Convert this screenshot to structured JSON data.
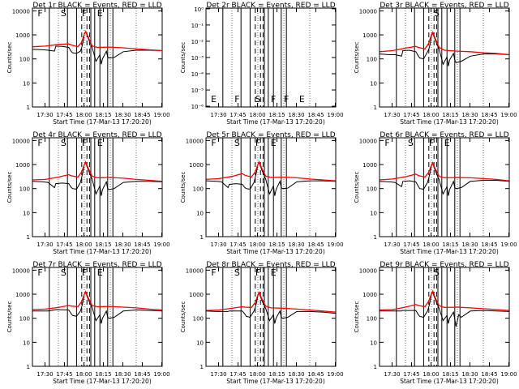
{
  "colors": {
    "events": "#000000",
    "lld": "#ff0000",
    "axes": "#000000",
    "background": "#ffffff"
  },
  "x_tick_labels": [
    "17:30",
    "17:45",
    "18:00",
    "18:15",
    "18:30",
    "18:45",
    "19:00"
  ],
  "xlabel": "Start Time (17-Mar-13 17:20:20)",
  "ylabel": "Counts/sec",
  "chart_data": [
    {
      "type": "line",
      "panel": "1r",
      "title": "Det 1r  BLACK = Events, RED = LLD",
      "x_unit": "minutes after 17:20:20",
      "xlim": [
        0,
        100
      ],
      "yscale": "log",
      "ylim": [
        1,
        13000
      ],
      "y_tick_labels": [
        "1",
        "10",
        "100",
        "1000",
        "10000"
      ],
      "y_tick_values": [
        1,
        10,
        100,
        1000,
        10000
      ],
      "attenuator_letters": [
        "F",
        "S",
        "F",
        "E"
      ],
      "series": [
        {
          "name": "Events",
          "color": "#000000",
          "x": [
            0,
            8,
            12,
            17,
            18,
            23,
            28,
            30,
            31,
            34,
            37,
            38,
            39,
            40,
            41,
            43,
            46,
            49,
            52,
            53,
            54,
            57,
            58,
            59,
            63,
            70,
            80,
            90,
            100
          ],
          "y": [
            250,
            240,
            230,
            210,
            340,
            330,
            300,
            200,
            180,
            170,
            210,
            300,
            500,
            1100,
            1400,
            700,
            300,
            80,
            150,
            60,
            100,
            210,
            120,
            110,
            115,
            200,
            230,
            230,
            220
          ]
        },
        {
          "name": "LLD",
          "color": "#ff0000",
          "x": [
            0,
            10,
            20,
            28,
            30,
            35,
            38,
            40,
            41,
            43,
            46,
            50,
            60,
            70,
            80,
            90,
            100
          ],
          "y": [
            320,
            340,
            400,
            420,
            380,
            320,
            500,
            1100,
            1400,
            800,
            350,
            300,
            310,
            290,
            260,
            240,
            220
          ]
        }
      ]
    },
    {
      "type": "line",
      "panel": "2r",
      "title": "Det 2r  BLACK = Events, RED = LLD",
      "x_unit": "minutes after 17:20:20",
      "xlim": [
        0,
        100
      ],
      "yscale": "log",
      "ylim": [
        9e-07,
        1.1
      ],
      "y_tick_labels": [
        "10⁰",
        "10⁻¹",
        "10⁻²",
        "10⁻³",
        "10⁻⁴",
        "10⁻⁵",
        "10⁻⁶"
      ],
      "y_tick_values": [
        1,
        0.1,
        0.01,
        0.001,
        0.0001,
        1e-05,
        1e-06
      ],
      "attenuator_letters": [
        "E",
        "F",
        "S",
        "F",
        "F",
        "E"
      ],
      "series": []
    },
    {
      "type": "line",
      "panel": "3r",
      "title": "Det 3r  BLACK = Events, RED = LLD",
      "x_unit": "minutes after 17:20:20",
      "xlim": [
        0,
        100
      ],
      "yscale": "log",
      "ylim": [
        1,
        13000
      ],
      "y_tick_labels": [
        "1",
        "10",
        "100",
        "1000",
        "10000"
      ],
      "y_tick_values": [
        1,
        10,
        100,
        1000,
        10000
      ],
      "attenuator_letters": [
        "S"
      ],
      "series": [
        {
          "name": "Events",
          "color": "#000000",
          "x": [
            0,
            8,
            12,
            17,
            18,
            23,
            28,
            30,
            31,
            34,
            37,
            38,
            39,
            40,
            41,
            43,
            46,
            49,
            52,
            53,
            54,
            57,
            58,
            59,
            63,
            70,
            80,
            90,
            100
          ],
          "y": [
            160,
            150,
            150,
            130,
            220,
            230,
            200,
            130,
            110,
            100,
            200,
            250,
            400,
            900,
            1200,
            600,
            250,
            60,
            120,
            50,
            90,
            170,
            90,
            70,
            80,
            130,
            160,
            160,
            150
          ]
        },
        {
          "name": "LLD",
          "color": "#ff0000",
          "x": [
            0,
            10,
            20,
            28,
            30,
            35,
            38,
            40,
            41,
            43,
            46,
            50,
            60,
            70,
            80,
            90,
            100
          ],
          "y": [
            200,
            220,
            280,
            330,
            300,
            260,
            450,
            1000,
            1300,
            700,
            300,
            230,
            210,
            200,
            180,
            170,
            150
          ]
        }
      ]
    },
    {
      "type": "line",
      "panel": "4r",
      "title": "Det 4r  BLACK = Events, RED = LLD",
      "x_unit": "minutes after 17:20:20",
      "xlim": [
        0,
        100
      ],
      "yscale": "log",
      "ylim": [
        1,
        13000
      ],
      "y_tick_labels": [
        "1",
        "10",
        "100",
        "1000",
        "10000"
      ],
      "y_tick_values": [
        1,
        10,
        100,
        1000,
        10000
      ],
      "attenuator_letters": [
        "F",
        "S",
        "F",
        "E"
      ],
      "series": [
        {
          "name": "Events",
          "color": "#000000",
          "x": [
            0,
            8,
            12,
            17,
            18,
            23,
            28,
            30,
            31,
            34,
            37,
            38,
            39,
            40,
            41,
            43,
            46,
            49,
            52,
            53,
            54,
            57,
            58,
            59,
            63,
            70,
            80,
            90,
            100
          ],
          "y": [
            200,
            190,
            180,
            110,
            160,
            170,
            160,
            110,
            100,
            95,
            180,
            300,
            500,
            1000,
            1200,
            600,
            250,
            60,
            130,
            50,
            90,
            190,
            100,
            90,
            100,
            180,
            200,
            200,
            190
          ]
        },
        {
          "name": "LLD",
          "color": "#ff0000",
          "x": [
            0,
            10,
            20,
            28,
            30,
            35,
            38,
            40,
            41,
            43,
            46,
            50,
            60,
            70,
            80,
            90,
            100
          ],
          "y": [
            230,
            240,
            300,
            380,
            340,
            300,
            500,
            1000,
            1300,
            700,
            330,
            280,
            290,
            270,
            240,
            220,
            200
          ]
        }
      ]
    },
    {
      "type": "line",
      "panel": "5r",
      "title": "Det 5r  BLACK = Events, RED = LLD",
      "x_unit": "minutes after 17:20:20",
      "xlim": [
        0,
        100
      ],
      "yscale": "log",
      "ylim": [
        1,
        13000
      ],
      "y_tick_labels": [
        "1",
        "10",
        "100",
        "1000",
        "10000"
      ],
      "y_tick_values": [
        1,
        10,
        100,
        1000,
        10000
      ],
      "attenuator_letters": [
        "F",
        "S",
        "F",
        "E"
      ],
      "series": [
        {
          "name": "Events",
          "color": "#000000",
          "x": [
            0,
            8,
            12,
            17,
            18,
            23,
            28,
            30,
            31,
            34,
            37,
            38,
            39,
            40,
            41,
            43,
            46,
            49,
            52,
            53,
            54,
            57,
            58,
            59,
            63,
            70,
            80,
            90,
            100
          ],
          "y": [
            210,
            200,
            190,
            110,
            150,
            160,
            150,
            110,
            100,
            95,
            180,
            300,
            500,
            1000,
            1200,
            600,
            250,
            60,
            130,
            50,
            90,
            200,
            110,
            100,
            105,
            190,
            210,
            210,
            200
          ]
        },
        {
          "name": "LLD",
          "color": "#ff0000",
          "x": [
            0,
            10,
            20,
            28,
            30,
            35,
            38,
            40,
            41,
            43,
            46,
            50,
            60,
            70,
            80,
            90,
            100
          ],
          "y": [
            240,
            260,
            320,
            420,
            360,
            300,
            500,
            1000,
            1300,
            700,
            330,
            290,
            300,
            280,
            250,
            230,
            210
          ]
        }
      ]
    },
    {
      "type": "line",
      "panel": "6r",
      "title": "Det 6r  BLACK = Events, RED = LLD",
      "x_unit": "minutes after 17:20:20",
      "xlim": [
        0,
        100
      ],
      "yscale": "log",
      "ylim": [
        1,
        13000
      ],
      "y_tick_labels": [
        "1",
        "10",
        "100",
        "1000",
        "10000"
      ],
      "y_tick_values": [
        1,
        10,
        100,
        1000,
        10000
      ],
      "attenuator_letters": [
        "F",
        "S",
        "F",
        "E"
      ],
      "series": [
        {
          "name": "Events",
          "color": "#000000",
          "x": [
            0,
            8,
            12,
            17,
            18,
            23,
            28,
            30,
            31,
            34,
            37,
            38,
            39,
            40,
            41,
            43,
            46,
            49,
            52,
            53,
            54,
            57,
            58,
            59,
            63,
            70,
            80,
            90,
            100
          ],
          "y": [
            200,
            190,
            180,
            120,
            200,
            210,
            190,
            120,
            100,
            95,
            180,
            280,
            450,
            900,
            1100,
            550,
            230,
            60,
            120,
            50,
            90,
            200,
            110,
            100,
            110,
            200,
            220,
            220,
            200
          ]
        },
        {
          "name": "LLD",
          "color": "#ff0000",
          "x": [
            0,
            10,
            20,
            28,
            30,
            35,
            38,
            40,
            41,
            43,
            46,
            50,
            60,
            70,
            80,
            90,
            100
          ],
          "y": [
            230,
            250,
            310,
            400,
            350,
            300,
            480,
            950,
            1200,
            650,
            320,
            280,
            290,
            280,
            260,
            240,
            210
          ]
        }
      ]
    },
    {
      "type": "line",
      "panel": "7r",
      "title": "Det 7r  BLACK = Events, RED = LLD",
      "x_unit": "minutes after 17:20:20",
      "xlim": [
        0,
        100
      ],
      "yscale": "log",
      "ylim": [
        1,
        13000
      ],
      "y_tick_labels": [
        "1",
        "10",
        "100",
        "1000",
        "10000"
      ],
      "y_tick_values": [
        1,
        10,
        100,
        1000,
        10000
      ],
      "attenuator_letters": [
        "F",
        "S",
        "F",
        "E"
      ],
      "series": [
        {
          "name": "Events",
          "color": "#000000",
          "x": [
            0,
            8,
            12,
            17,
            18,
            23,
            28,
            30,
            31,
            34,
            37,
            38,
            39,
            40,
            41,
            43,
            46,
            49,
            52,
            53,
            54,
            57,
            58,
            59,
            63,
            70,
            80,
            90,
            100
          ],
          "y": [
            200,
            200,
            200,
            220,
            230,
            225,
            220,
            150,
            130,
            120,
            200,
            300,
            500,
            1000,
            1200,
            600,
            280,
            80,
            140,
            60,
            100,
            200,
            110,
            100,
            110,
            200,
            220,
            210,
            200
          ]
        },
        {
          "name": "LLD",
          "color": "#ff0000",
          "x": [
            0,
            10,
            20,
            28,
            30,
            35,
            38,
            40,
            41,
            43,
            46,
            50,
            60,
            70,
            80,
            90,
            100
          ],
          "y": [
            230,
            240,
            280,
            340,
            320,
            300,
            500,
            1000,
            1300,
            700,
            340,
            300,
            310,
            290,
            270,
            240,
            220
          ]
        }
      ]
    },
    {
      "type": "line",
      "panel": "8r",
      "title": "Det 8r  BLACK = Events, RED = LLD",
      "x_unit": "minutes after 17:20:20",
      "xlim": [
        0,
        100
      ],
      "yscale": "log",
      "ylim": [
        1,
        13000
      ],
      "y_tick_labels": [
        "1",
        "10",
        "100",
        "1000",
        "10000"
      ],
      "y_tick_values": [
        1,
        10,
        100,
        1000,
        10000
      ],
      "attenuator_letters": [
        "F",
        "S",
        "F",
        "E"
      ],
      "series": [
        {
          "name": "Events",
          "color": "#000000",
          "x": [
            0,
            8,
            12,
            17,
            18,
            23,
            28,
            30,
            31,
            34,
            37,
            38,
            39,
            40,
            41,
            43,
            46,
            49,
            52,
            53,
            54,
            57,
            58,
            59,
            63,
            70,
            80,
            90,
            100
          ],
          "y": [
            200,
            190,
            190,
            190,
            200,
            200,
            200,
            150,
            120,
            110,
            200,
            280,
            450,
            900,
            1100,
            550,
            260,
            80,
            140,
            60,
            100,
            200,
            110,
            100,
            110,
            190,
            190,
            180,
            160
          ]
        },
        {
          "name": "LLD",
          "color": "#ff0000",
          "x": [
            0,
            10,
            20,
            28,
            30,
            35,
            38,
            40,
            41,
            43,
            46,
            50,
            60,
            70,
            80,
            90,
            100
          ],
          "y": [
            210,
            220,
            260,
            300,
            290,
            280,
            450,
            950,
            1200,
            650,
            320,
            270,
            260,
            240,
            220,
            200,
            180
          ]
        }
      ]
    },
    {
      "type": "line",
      "panel": "9r",
      "title": "Det 9r  BLACK = Events, RED = LLD",
      "x_unit": "minutes after 17:20:20",
      "xlim": [
        0,
        100
      ],
      "yscale": "log",
      "ylim": [
        1,
        13000
      ],
      "y_tick_labels": [
        "1",
        "10",
        "100",
        "1000",
        "10000"
      ],
      "y_tick_values": [
        1,
        10,
        100,
        1000,
        10000
      ],
      "attenuator_letters": [
        "S"
      ],
      "series": [
        {
          "name": "Events",
          "color": "#000000",
          "x": [
            0,
            8,
            12,
            17,
            18,
            23,
            28,
            30,
            31,
            34,
            37,
            38,
            39,
            40,
            41,
            43,
            46,
            49,
            52,
            53,
            54,
            57,
            58,
            59,
            61,
            63,
            70,
            80,
            90,
            100
          ],
          "y": [
            200,
            200,
            200,
            200,
            210,
            210,
            210,
            140,
            120,
            110,
            200,
            300,
            500,
            1000,
            1200,
            600,
            250,
            80,
            130,
            60,
            100,
            180,
            90,
            45,
            140,
            110,
            200,
            210,
            200,
            190
          ]
        },
        {
          "name": "LLD",
          "color": "#ff0000",
          "x": [
            0,
            10,
            20,
            28,
            30,
            35,
            38,
            40,
            41,
            43,
            46,
            50,
            60,
            70,
            80,
            90,
            100
          ],
          "y": [
            220,
            230,
            290,
            370,
            340,
            300,
            520,
            1050,
            1350,
            700,
            330,
            280,
            290,
            270,
            250,
            230,
            210
          ]
        }
      ]
    }
  ]
}
